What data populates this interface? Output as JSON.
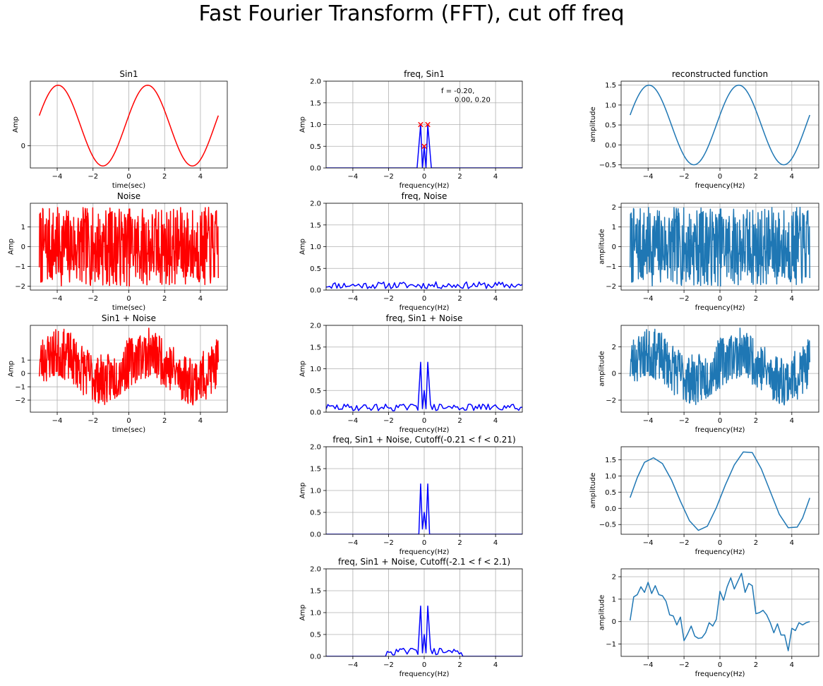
{
  "figure": {
    "title": "Fast Fourier Transform (FFT), cut off freq"
  },
  "chart_data": [
    {
      "id": "sin1",
      "type": "line",
      "title": "Sin1",
      "xlabel": "time(sec)",
      "ylabel": "Amp",
      "xlim": [
        -5.5,
        5.5
      ],
      "ylim": [
        -0.55,
        1.6
      ],
      "xticks": [
        -4,
        -2,
        0,
        2,
        4
      ],
      "yticks": [
        0
      ],
      "grid": true,
      "series": [
        {
          "color": "#ff0000",
          "gen": "sine",
          "params": {
            "amp": 1.0,
            "period": 5,
            "phase": -0.2,
            "offset": 0.5,
            "x0": -5,
            "x1": 5,
            "n": 201
          }
        }
      ]
    },
    {
      "id": "freq_sin1",
      "type": "line",
      "title": "freq, Sin1",
      "xlabel": "frequency(Hz)",
      "ylabel": "Amp",
      "xlim": [
        -5.5,
        5.5
      ],
      "ylim": [
        0,
        2.0
      ],
      "xticks": [
        -4,
        -2,
        0,
        2,
        4
      ],
      "yticks": [
        0.0,
        0.5,
        1.0,
        1.5,
        2.0
      ],
      "grid": true,
      "series": [
        {
          "color": "#0000ff",
          "x": [
            -5.5,
            -0.4,
            -0.2,
            -0.1,
            0,
            0.1,
            0.2,
            0.4,
            5.5
          ],
          "y": [
            0,
            0,
            1.0,
            0,
            0.5,
            0,
            1.0,
            0,
            0
          ]
        }
      ],
      "markers": {
        "color": "#ff0000",
        "x": [
          -0.2,
          0,
          0.2
        ],
        "y": [
          1.0,
          0.5,
          1.0
        ]
      },
      "annotation": {
        "lines": [
          "f = -0.20,",
          "0.00, 0.20"
        ]
      }
    },
    {
      "id": "recon_sin1",
      "type": "line",
      "title": "reconstructed function",
      "xlabel": "frequency(Hz)",
      "ylabel": "amplitude",
      "xlim": [
        -5.5,
        5.5
      ],
      "ylim": [
        -0.58,
        1.6
      ],
      "xticks": [
        -4,
        -2,
        0,
        2,
        4
      ],
      "yticks": [
        -0.5,
        0.0,
        0.5,
        1.0,
        1.5
      ],
      "grid": true,
      "series": [
        {
          "color": "#1f77b4",
          "gen": "sine",
          "params": {
            "amp": 1.0,
            "period": 5,
            "phase": -0.2,
            "offset": 0.5,
            "x0": -5,
            "x1": 5,
            "n": 201
          }
        }
      ]
    },
    {
      "id": "noise",
      "type": "line",
      "title": "Noise",
      "xlabel": "time(sec)",
      "ylabel": "Amp",
      "xlim": [
        -5.5,
        5.5
      ],
      "ylim": [
        -2.2,
        2.2
      ],
      "xticks": [
        -4,
        -2,
        0,
        2,
        4
      ],
      "yticks": [
        -2,
        -1,
        0,
        1
      ],
      "grid": true,
      "series": [
        {
          "color": "#ff0000",
          "gen": "noise",
          "params": {
            "x0": -5,
            "x1": 5,
            "n": 480,
            "lo": -2,
            "hi": 2,
            "seed": 7
          }
        }
      ]
    },
    {
      "id": "freq_noise",
      "type": "line",
      "title": "freq, Noise",
      "xlabel": "frequency(Hz)",
      "ylabel": "Amp",
      "xlim": [
        -5.5,
        5.5
      ],
      "ylim": [
        0,
        2.0
      ],
      "xticks": [
        -4,
        -2,
        0,
        2,
        4
      ],
      "yticks": [
        0.0,
        0.5,
        1.0,
        1.5,
        2.0
      ],
      "grid": true,
      "series": [
        {
          "color": "#0000ff",
          "gen": "noise",
          "params": {
            "x0": -5.5,
            "x1": 5.5,
            "n": 110,
            "lo": 0.03,
            "hi": 0.19,
            "seed": 11
          }
        }
      ]
    },
    {
      "id": "recon_noise",
      "type": "line",
      "ylabel": "amplitude",
      "xlabel": "frequency(Hz)",
      "xlim": [
        -5.5,
        5.5
      ],
      "ylim": [
        -2.2,
        2.2
      ],
      "xticks": [
        -4,
        -2,
        0,
        2,
        4
      ],
      "yticks": [
        -2,
        -1,
        0,
        1,
        2
      ],
      "grid": true,
      "series": [
        {
          "color": "#1f77b4",
          "gen": "noise",
          "params": {
            "x0": -5,
            "x1": 5,
            "n": 480,
            "lo": -2,
            "hi": 2,
            "seed": 7
          }
        }
      ]
    },
    {
      "id": "sin1_noise",
      "type": "line",
      "title": "Sin1 + Noise",
      "xlabel": "time(sec)",
      "ylabel": "Amp",
      "xlim": [
        -5.5,
        5.5
      ],
      "ylim": [
        -2.9,
        3.6
      ],
      "xticks": [
        -4,
        -2,
        0,
        2,
        4
      ],
      "yticks": [
        -2,
        -1,
        0,
        1
      ],
      "grid": true,
      "series": [
        {
          "color": "#ff0000",
          "gen": "sine_noise",
          "params": {
            "amp": 1.0,
            "period": 5,
            "phase": -0.2,
            "offset": 0.5,
            "x0": -5,
            "x1": 5,
            "n": 480,
            "lo": -1.9,
            "hi": 1.9,
            "seed": 23
          }
        }
      ]
    },
    {
      "id": "freq_sin1_noise",
      "type": "line",
      "title": "freq, Sin1 + Noise",
      "xlabel": "frequency(Hz)",
      "ylabel": "Amp",
      "xlim": [
        -5.5,
        5.5
      ],
      "ylim": [
        0,
        2.0
      ],
      "xticks": [
        -4,
        -2,
        0,
        2,
        4
      ],
      "yticks": [
        0.0,
        0.5,
        1.0,
        1.5,
        2.0
      ],
      "grid": true,
      "series": [
        {
          "color": "#0000ff",
          "gen": "spectrum",
          "params": {
            "x0": -5.5,
            "x1": 5.5,
            "n": 110,
            "lo": 0.03,
            "hi": 0.19,
            "seed": 29,
            "cut": 5.5,
            "peaks": [
              [
                -0.2,
                1.15
              ],
              [
                0,
                0.5
              ],
              [
                0.2,
                1.15
              ]
            ]
          }
        }
      ]
    },
    {
      "id": "recon_sin1_noise",
      "type": "line",
      "ylabel": "amplitude",
      "xlabel": "frequency(Hz)",
      "xlim": [
        -5.5,
        5.5
      ],
      "ylim": [
        -2.9,
        3.6
      ],
      "xticks": [
        -4,
        -2,
        0,
        2,
        4
      ],
      "yticks": [
        -2,
        0,
        2
      ],
      "grid": true,
      "series": [
        {
          "color": "#1f77b4",
          "gen": "sine_noise",
          "params": {
            "amp": 1.0,
            "period": 5,
            "phase": -0.2,
            "offset": 0.5,
            "x0": -5,
            "x1": 5,
            "n": 480,
            "lo": -1.9,
            "hi": 1.9,
            "seed": 23
          }
        }
      ]
    },
    {
      "id": "freq_cut1",
      "type": "line",
      "title": "freq, Sin1 + Noise, Cutoff(-0.21 < f < 0.21)",
      "xlabel": "frequency(Hz)",
      "ylabel": "Amp",
      "xlim": [
        -5.5,
        5.5
      ],
      "ylim": [
        0,
        2.0
      ],
      "xticks": [
        -4,
        -2,
        0,
        2,
        4
      ],
      "yticks": [
        0.0,
        0.5,
        1.0,
        1.5,
        2.0
      ],
      "grid": true,
      "series": [
        {
          "color": "#0000ff",
          "x": [
            -5.5,
            -0.3,
            -0.2,
            -0.1,
            0,
            0.1,
            0.2,
            0.3,
            5.5
          ],
          "y": [
            0,
            0,
            1.15,
            0.12,
            0.5,
            0.12,
            1.15,
            0,
            0
          ]
        }
      ]
    },
    {
      "id": "recon_cut1",
      "type": "line",
      "ylabel": "amplitude",
      "xlabel": "frequency(Hz)",
      "xlim": [
        -5.5,
        5.5
      ],
      "ylim": [
        -0.8,
        1.9
      ],
      "xticks": [
        -4,
        -2,
        0,
        2,
        4
      ],
      "yticks": [
        -0.5,
        0.0,
        0.5,
        1.0,
        1.5
      ],
      "grid": true,
      "series": [
        {
          "color": "#1f77b4",
          "x": [
            -5,
            -4.6,
            -4.2,
            -3.7,
            -3.2,
            -2.7,
            -2.2,
            -1.7,
            -1.2,
            -0.7,
            -0.2,
            0.3,
            0.8,
            1.3,
            1.8,
            2.3,
            2.8,
            3.3,
            3.8,
            4.3,
            4.6,
            5
          ],
          "y": [
            0.33,
            0.95,
            1.42,
            1.56,
            1.38,
            0.88,
            0.22,
            -0.38,
            -0.68,
            -0.55,
            0.02,
            0.72,
            1.34,
            1.74,
            1.72,
            1.22,
            0.52,
            -0.18,
            -0.6,
            -0.58,
            -0.3,
            0.32
          ]
        }
      ]
    },
    {
      "id": "freq_cut2",
      "type": "line",
      "title": "freq, Sin1 + Noise, Cutoff(-2.1 < f < 2.1)",
      "xlabel": "frequency(Hz)",
      "ylabel": "Amp",
      "xlim": [
        -5.5,
        5.5
      ],
      "ylim": [
        0,
        2.0
      ],
      "xticks": [
        -4,
        -2,
        0,
        2,
        4
      ],
      "yticks": [
        0.0,
        0.5,
        1.0,
        1.5,
        2.0
      ],
      "grid": true,
      "series": [
        {
          "color": "#0000ff",
          "gen": "spectrum",
          "params": {
            "x0": -5.5,
            "x1": 5.5,
            "n": 110,
            "lo": 0.03,
            "hi": 0.19,
            "seed": 29,
            "cut": 2.1,
            "peaks": [
              [
                -0.2,
                1.15
              ],
              [
                0,
                0.5
              ],
              [
                0.2,
                1.15
              ]
            ]
          }
        }
      ]
    },
    {
      "id": "recon_cut2",
      "type": "line",
      "ylabel": "amplitude",
      "xlabel": "frequency(Hz)",
      "xlim": [
        -5.5,
        5.5
      ],
      "ylim": [
        -1.55,
        2.35
      ],
      "xticks": [
        -4,
        -2,
        0,
        2,
        4
      ],
      "yticks": [
        -1,
        0,
        1,
        2
      ],
      "grid": true,
      "series": [
        {
          "color": "#1f77b4",
          "x": [
            -5,
            -4.8,
            -4.6,
            -4.4,
            -4.2,
            -4.0,
            -3.8,
            -3.6,
            -3.4,
            -3.2,
            -3.0,
            -2.8,
            -2.6,
            -2.4,
            -2.2,
            -2.0,
            -1.8,
            -1.6,
            -1.4,
            -1.2,
            -1.0,
            -0.8,
            -0.6,
            -0.4,
            -0.2,
            0.0,
            0.2,
            0.4,
            0.6,
            0.8,
            1.0,
            1.2,
            1.4,
            1.6,
            1.8,
            2.0,
            2.2,
            2.4,
            2.6,
            2.8,
            3.0,
            3.2,
            3.4,
            3.6,
            3.8,
            4.0,
            4.2,
            4.4,
            4.6,
            4.8,
            5.0
          ],
          "y": [
            0.05,
            1.1,
            1.2,
            1.55,
            1.3,
            1.75,
            1.25,
            1.6,
            1.2,
            1.15,
            0.9,
            0.3,
            0.25,
            -0.15,
            0.2,
            -0.85,
            -0.55,
            -0.2,
            -0.65,
            -0.75,
            -0.72,
            -0.5,
            -0.05,
            -0.2,
            0.1,
            1.35,
            0.95,
            1.55,
            1.95,
            1.45,
            1.8,
            2.15,
            1.3,
            1.7,
            1.6,
            0.35,
            0.4,
            0.5,
            0.3,
            -0.05,
            -0.5,
            -0.1,
            -0.6,
            -0.6,
            -1.3,
            -0.3,
            -0.4,
            -0.05,
            -0.15,
            -0.05,
            0.0
          ]
        }
      ]
    }
  ]
}
